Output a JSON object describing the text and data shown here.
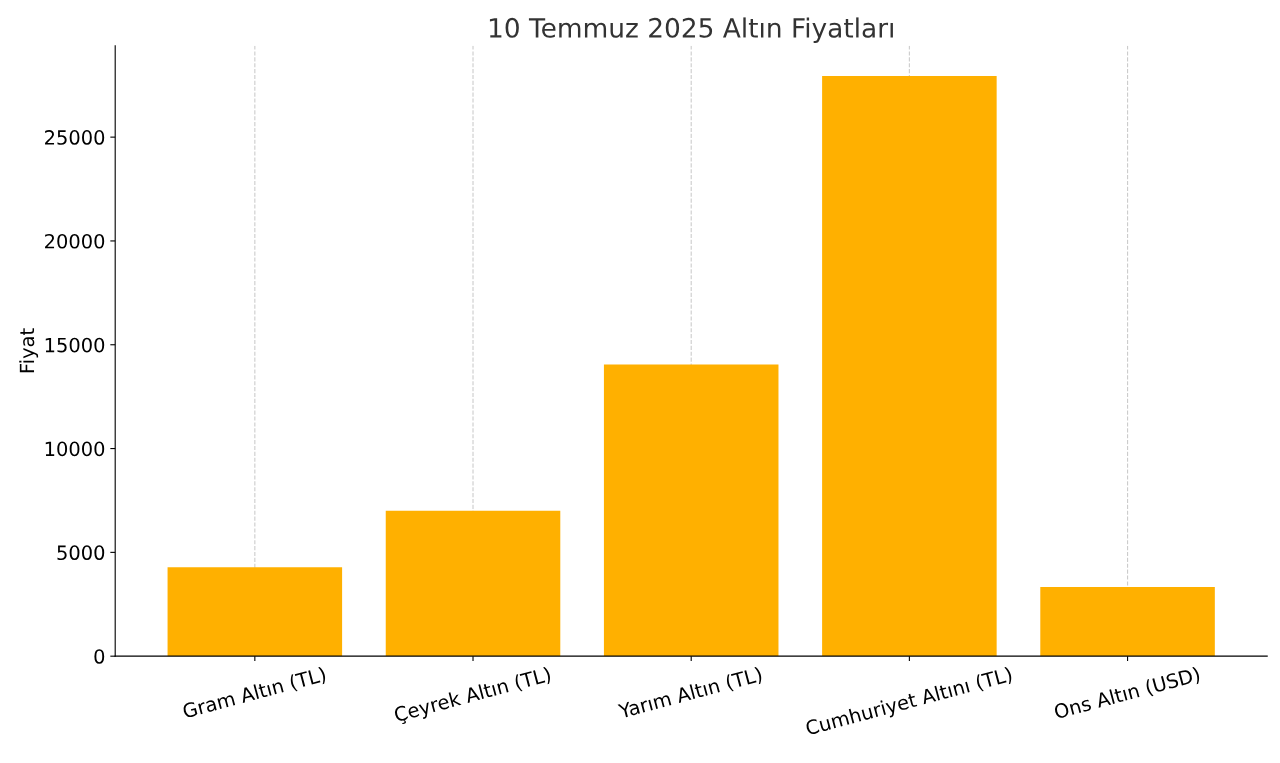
{
  "chart_data": {
    "type": "bar",
    "title": "10 Temmuz 2025 Altın Fiyatları",
    "ylabel": "Fiyat",
    "categories": [
      "Gram Altın (TL)",
      "Çeyrek Altın (TL)",
      "Yarım Altın (TL)",
      "Cumhuriyet Altını (TL)",
      "Ons Altın (USD)"
    ],
    "values": [
      4280,
      7000,
      14050,
      27950,
      3330
    ],
    "color": "#ffb000",
    "ylim": [
      0,
      29400
    ],
    "yticks": [
      0,
      5000,
      10000,
      15000,
      20000,
      25000
    ],
    "grid": "x"
  }
}
